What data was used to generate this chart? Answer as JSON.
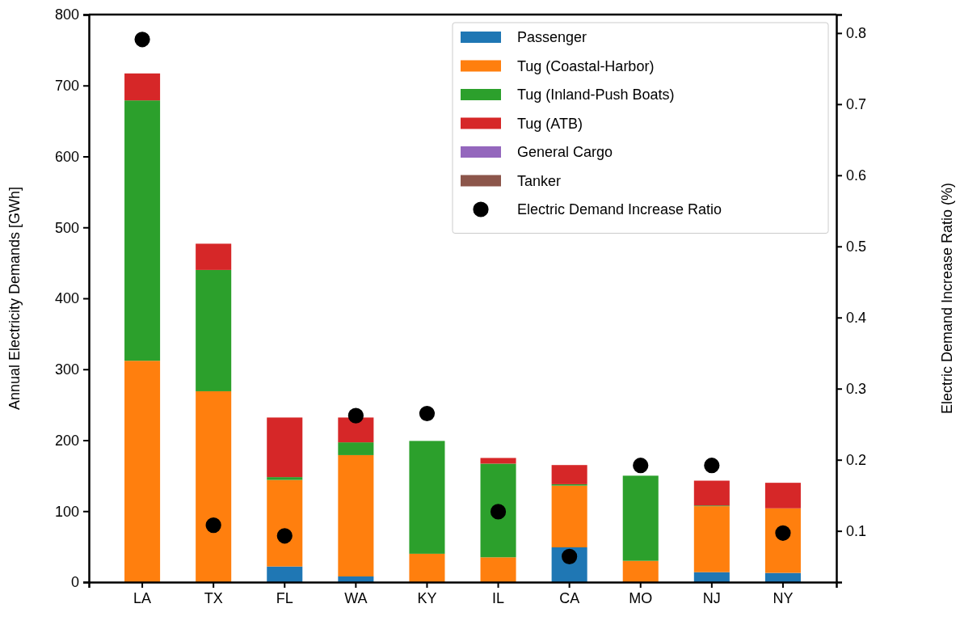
{
  "chart_data": {
    "type": "bar",
    "stacked": true,
    "categories": [
      "LA",
      "TX",
      "FL",
      "WA",
      "KY",
      "IL",
      "CA",
      "MO",
      "NJ",
      "NY"
    ],
    "ylabel": "Annual Electricity Demands [GWh]",
    "y2label": "Electric Demand Increase Ratio (%)",
    "ylim": [
      0,
      800
    ],
    "yticks": [
      0,
      100,
      200,
      300,
      400,
      500,
      600,
      700,
      800
    ],
    "y2lim": [
      0.028,
      0.826
    ],
    "y2ticks": [
      0.1,
      0.2,
      0.3,
      0.4,
      0.5,
      0.6,
      0.7,
      0.8
    ],
    "legend": "top right",
    "grid": false,
    "series": [
      {
        "name": "Passenger",
        "color": "#1f77b4",
        "values": [
          0,
          0,
          22,
          8,
          0,
          0,
          49,
          0,
          14,
          13
        ]
      },
      {
        "name": "Tug (Coastal-Harbor)",
        "color": "#ff7f0e",
        "values": [
          312,
          269,
          122,
          171,
          40,
          35,
          87,
          30,
          93,
          91
        ]
      },
      {
        "name": "Tug (Inland-Push Boats)",
        "color": "#2ca02c",
        "values": [
          367,
          171,
          4,
          18,
          159,
          132,
          2,
          120,
          1,
          0
        ]
      },
      {
        "name": "Tug (ATB)",
        "color": "#d62728",
        "values": [
          38,
          37,
          84,
          35,
          0,
          8,
          27,
          0,
          35,
          36
        ]
      },
      {
        "name": "General Cargo",
        "color": "#9467bd",
        "values": [
          0,
          0,
          0,
          0,
          0,
          0,
          0,
          0,
          0,
          0
        ]
      },
      {
        "name": "Tanker",
        "color": "#8c564b",
        "values": [
          0,
          0,
          0,
          0,
          0,
          0,
          0,
          0,
          0,
          0
        ]
      },
      {
        "name": "Electric Demand Increase Ratio",
        "type": "scatter",
        "axis": "y2",
        "marker": "circle",
        "color": "#000000",
        "values": [
          0.791,
          0.108,
          0.093,
          0.262,
          0.265,
          0.127,
          0.064,
          0.192,
          0.192,
          0.097
        ]
      }
    ]
  }
}
